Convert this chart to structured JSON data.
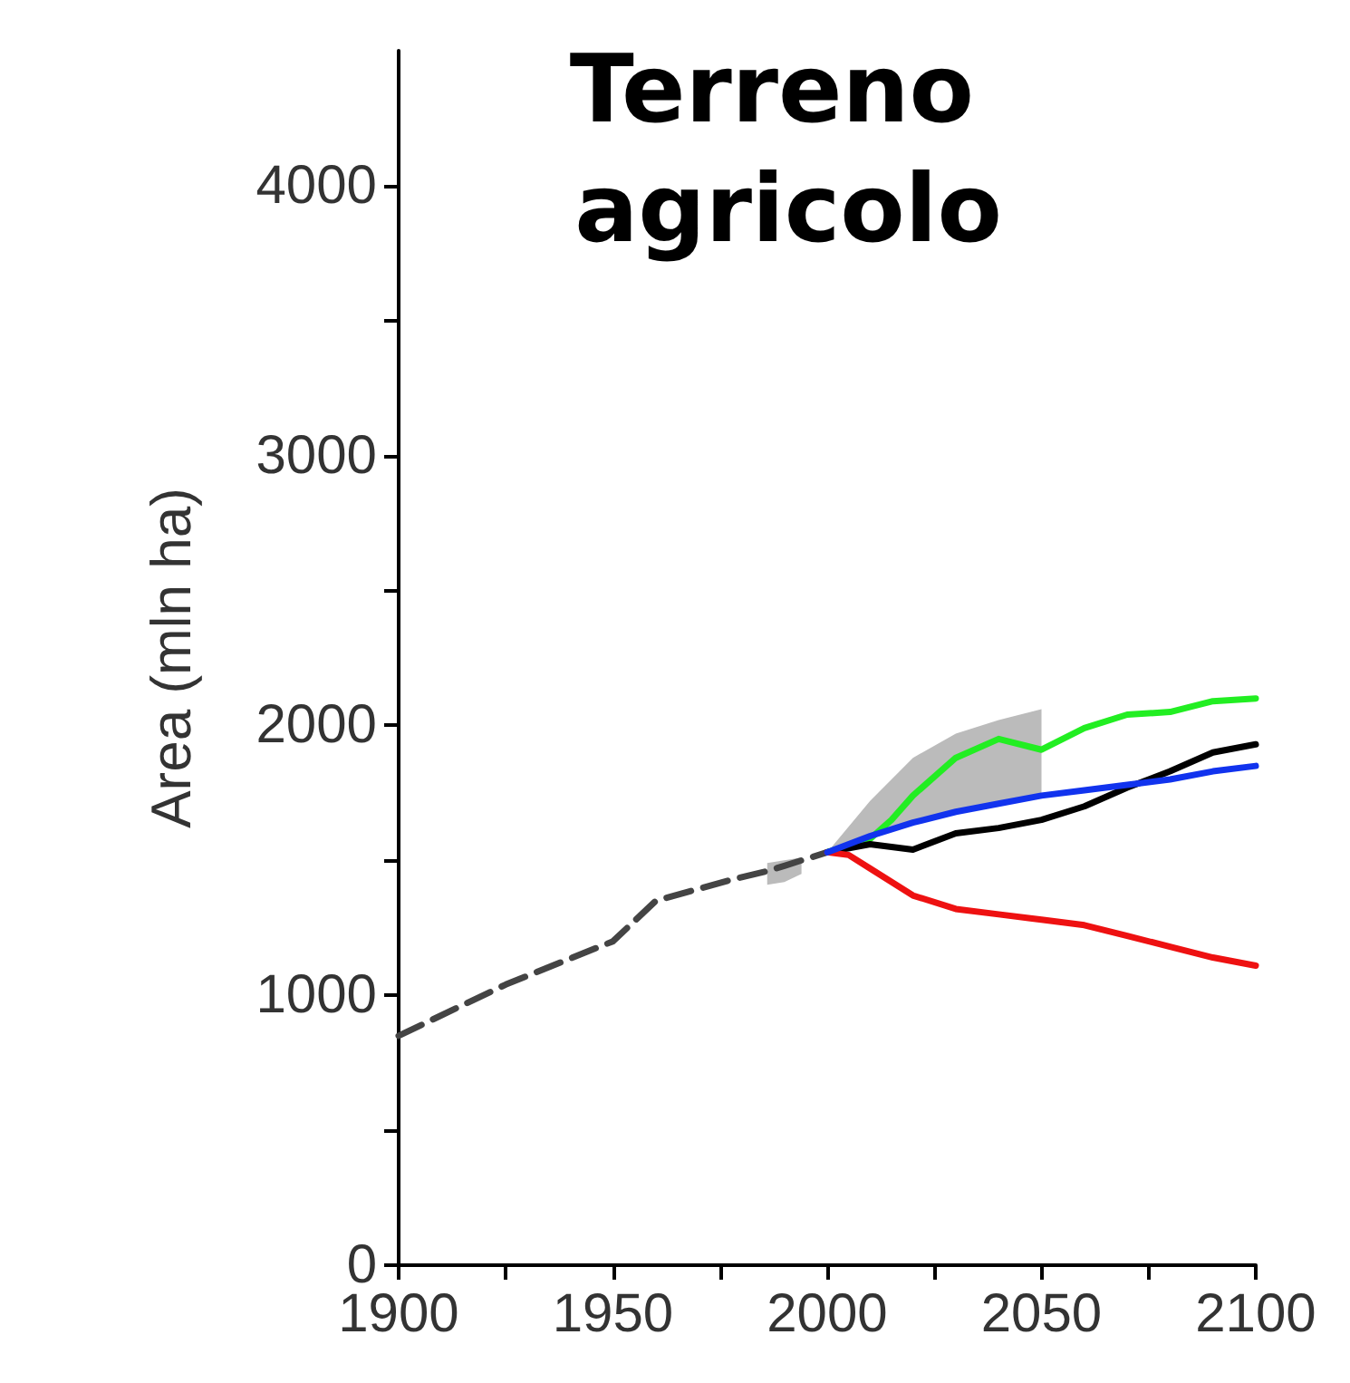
{
  "chart_data": {
    "type": "line",
    "title": "Terreno agricolo",
    "ylabel": "Area (mln ha)",
    "xlim": [
      1900,
      2100
    ],
    "xticks": [
      1900,
      {
        "value": 1925,
        "label": null
      },
      1950,
      {
        "value": 1975,
        "label": null
      },
      2000,
      {
        "value": 2025,
        "label": null
      },
      2050,
      {
        "value": 2075,
        "label": null
      },
      2100
    ],
    "ylim": [
      0,
      4500
    ],
    "yticks": [
      0,
      {
        "value": 500,
        "label": null
      },
      1000,
      {
        "value": 1500,
        "label": null
      },
      2000,
      {
        "value": 2500,
        "label": null
      },
      3000,
      {
        "value": 3500,
        "label": null
      },
      4000
    ],
    "grid": false,
    "marker": "none",
    "series": [
      {
        "color": "#444444",
        "line_style": "dashed",
        "x": [
          1900,
          1925,
          1950,
          1960,
          1978,
          1986,
          1990,
          1994,
          2000
        ],
        "values": [
          850,
          1040,
          1200,
          1350,
          1430,
          1460,
          1480,
          1500,
          1530
        ],
        "lower": [
          null,
          null,
          null,
          null,
          null,
          1410,
          1420,
          1450,
          null
        ],
        "upper": [
          null,
          null,
          null,
          null,
          null,
          1490,
          1500,
          1510,
          null
        ]
      },
      {
        "color": "#22ee22",
        "x": [
          2000,
          2010,
          2015,
          2020,
          2030,
          2040,
          2050,
          2060,
          2070,
          2080,
          2090,
          2100
        ],
        "values": [
          1530,
          1580,
          1650,
          1740,
          1880,
          1950,
          1910,
          1990,
          2040,
          2050,
          2090,
          2100
        ]
      },
      {
        "color": "#000000",
        "x": [
          2000,
          2010,
          2020,
          2030,
          2040,
          2050,
          2060,
          2070,
          2080,
          2090,
          2100
        ],
        "values": [
          1530,
          1560,
          1540,
          1600,
          1620,
          1650,
          1700,
          1770,
          1830,
          1900,
          1930
        ]
      },
      {
        "color": "#ee1111",
        "x": [
          2000,
          2005,
          2010,
          2020,
          2030,
          2040,
          2050,
          2060,
          2070,
          2080,
          2090,
          2100
        ],
        "values": [
          1530,
          1520,
          1470,
          1370,
          1320,
          1300,
          1280,
          1260,
          1220,
          1180,
          1140,
          1110
        ]
      },
      {
        "color": "#1133ee",
        "x": [
          2000,
          2010,
          2020,
          2030,
          2040,
          2050,
          2060,
          2070,
          2080,
          2090,
          2100
        ],
        "values": [
          1530,
          1590,
          1640,
          1680,
          1710,
          1740,
          1760,
          1780,
          1800,
          1830,
          1850
        ],
        "lower": [
          1530,
          1590,
          1640,
          1680,
          1710,
          1740,
          null,
          null,
          null,
          null,
          null
        ],
        "upper": [
          1530,
          1720,
          1880,
          1970,
          2020,
          2060,
          null,
          null,
          null,
          null,
          null
        ]
      }
    ]
  }
}
